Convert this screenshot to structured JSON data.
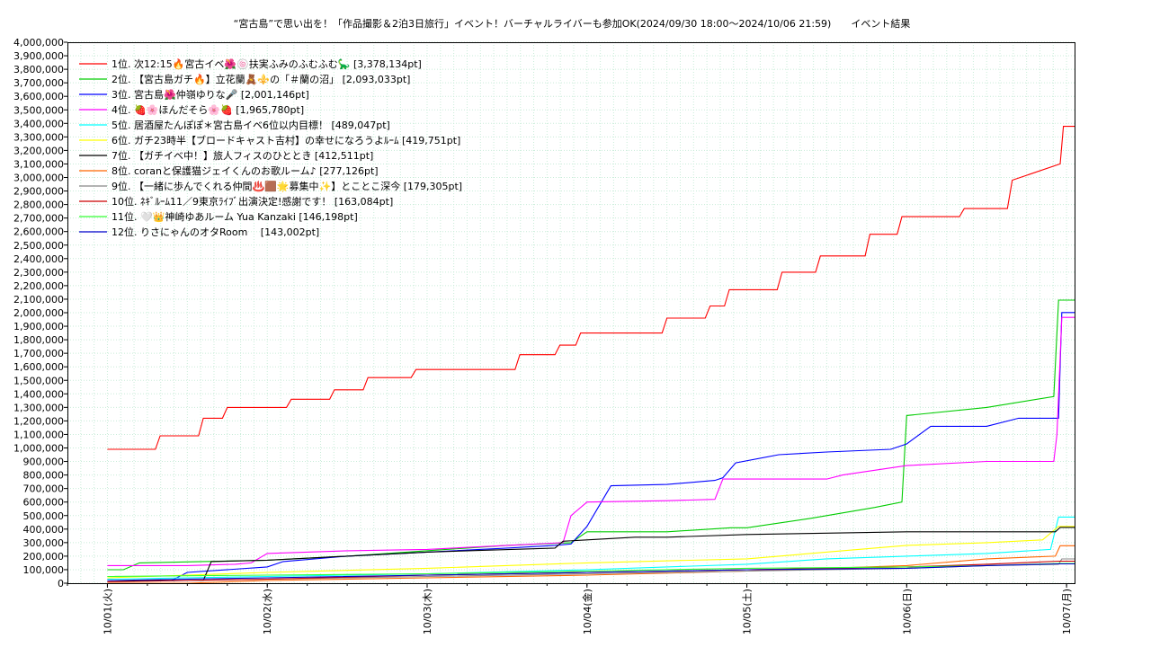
{
  "chart_data": {
    "type": "line",
    "title": "“宮古島”で思い出を！「作品撮影＆2泊3日旅行」イベント！バーチャルライバーも参加OK(2024/09/30 18:00～2024/10/06 21:59)　　イベント結果",
    "xlabel": "",
    "ylabel": "",
    "ylim": [
      0,
      4000000
    ],
    "yticks": [
      0,
      100000,
      200000,
      300000,
      400000,
      500000,
      600000,
      700000,
      800000,
      900000,
      1000000,
      1100000,
      1200000,
      1300000,
      1400000,
      1500000,
      1600000,
      1700000,
      1800000,
      1900000,
      2000000,
      2100000,
      2200000,
      2300000,
      2400000,
      2500000,
      2600000,
      2700000,
      2800000,
      2900000,
      3000000,
      3100000,
      3200000,
      3300000,
      3400000,
      3500000,
      3600000,
      3700000,
      3800000,
      3900000,
      4000000
    ],
    "yticklabels": [
      "0",
      "100,000",
      "200,000",
      "300,000",
      "400,000",
      "500,000",
      "600,000",
      "700,000",
      "800,000",
      "900,000",
      "1,000,000",
      "1,100,000",
      "1,200,000",
      "1,300,000",
      "1,400,000",
      "1,500,000",
      "1,600,000",
      "1,700,000",
      "1,800,000",
      "1,900,000",
      "2,000,000",
      "2,100,000",
      "2,200,000",
      "2,300,000",
      "2,400,000",
      "2,500,000",
      "2,600,000",
      "2,700,000",
      "2,800,000",
      "2,900,000",
      "3,000,000",
      "3,100,000",
      "3,200,000",
      "3,300,000",
      "3,400,000",
      "3,500,000",
      "3,600,000",
      "3,700,000",
      "3,800,000",
      "3,900,000",
      "4,000,000"
    ],
    "xlim_days": [
      -0.25,
      6.05
    ],
    "xticks_days": [
      0,
      1,
      2,
      3,
      4,
      5,
      6
    ],
    "xticklabels": [
      "10/01(火)",
      "10/02(水)",
      "10/03(木)",
      "10/04(金)",
      "10/05(土)",
      "10/06(日)",
      "10/07(月)"
    ],
    "grid": true,
    "legend_position": "top-left",
    "series": [
      {
        "name": "1位. 次12:15🔥宮古イベ🌺🍥扶実ふみのふむふむ🦕 [3,378,134pt]",
        "color": "#ff0000",
        "x": [
          0.0,
          0.3,
          0.33,
          0.57,
          0.6,
          0.72,
          0.75,
          1.12,
          1.15,
          1.39,
          1.42,
          1.6,
          1.63,
          1.9,
          1.93,
          2.55,
          2.58,
          2.8,
          2.83,
          2.93,
          2.96,
          3.47,
          3.5,
          3.74,
          3.77,
          3.86,
          3.89,
          4.19,
          4.22,
          4.43,
          4.46,
          4.74,
          4.77,
          4.94,
          4.97,
          5.33,
          5.36,
          5.63,
          5.66,
          5.96,
          5.98,
          6.0,
          6.05
        ],
        "y": [
          990000,
          990000,
          1090000,
          1090000,
          1220000,
          1220000,
          1300000,
          1300000,
          1360000,
          1360000,
          1430000,
          1430000,
          1520000,
          1520000,
          1580000,
          1580000,
          1690000,
          1690000,
          1760000,
          1760000,
          1850000,
          1850000,
          1960000,
          1960000,
          2050000,
          2050000,
          2170000,
          2170000,
          2300000,
          2300000,
          2420000,
          2420000,
          2580000,
          2580000,
          2710000,
          2710000,
          2770000,
          2770000,
          2980000,
          3100000,
          3378134,
          3378134,
          3378134
        ]
      },
      {
        "name": "2位. 【宮古島ガチ🔥】立花蘭🧸⚜️の「＃蘭の沼」 [2,093,033pt]",
        "color": "#00cc00",
        "x": [
          0.0,
          0.1,
          0.2,
          1.0,
          1.5,
          2.5,
          2.9,
          3.0,
          3.5,
          3.9,
          4.0,
          4.4,
          4.8,
          4.97,
          5.0,
          5.5,
          5.92,
          5.95,
          6.05
        ],
        "y": [
          100000,
          100000,
          150000,
          170000,
          200000,
          280000,
          300000,
          380000,
          380000,
          410000,
          410000,
          480000,
          560000,
          600000,
          1240000,
          1300000,
          1380000,
          2093033,
          2093033
        ]
      },
      {
        "name": "3位. 宮古島🌺仲嶺ゆりな🎤 [2,001,146pt]",
        "color": "#0000ff",
        "x": [
          0.0,
          0.4,
          0.5,
          1.0,
          1.1,
          1.5,
          2.0,
          2.5,
          2.8,
          2.9,
          3.0,
          3.15,
          3.5,
          3.8,
          3.85,
          3.93,
          4.2,
          4.5,
          4.9,
          5.0,
          5.15,
          5.5,
          5.7,
          5.95,
          5.97,
          6.05
        ],
        "y": [
          20000,
          20000,
          80000,
          120000,
          160000,
          200000,
          230000,
          260000,
          280000,
          290000,
          420000,
          720000,
          730000,
          760000,
          780000,
          890000,
          950000,
          970000,
          990000,
          1030000,
          1160000,
          1160000,
          1220000,
          1220000,
          2001146,
          2001146
        ]
      },
      {
        "name": "4位. 🍓🌸ほんだそら🌸🍓 [1,965,780pt]",
        "color": "#ff00ff",
        "x": [
          0.0,
          0.5,
          0.8,
          0.9,
          1.0,
          1.5,
          2.0,
          2.5,
          2.85,
          2.9,
          3.0,
          3.5,
          3.8,
          3.85,
          4.5,
          4.6,
          5.0,
          5.5,
          5.92,
          5.94,
          5.97,
          6.05
        ],
        "y": [
          130000,
          130000,
          140000,
          150000,
          220000,
          240000,
          250000,
          280000,
          300000,
          500000,
          600000,
          610000,
          620000,
          770000,
          770000,
          800000,
          870000,
          900000,
          900000,
          1100000,
          1965780,
          1965780
        ]
      },
      {
        "name": "5位. 居酒屋たんぽぽ＊宮古島イベ6位以内目標！ [489,047pt]",
        "color": "#00ffff",
        "x": [
          0.0,
          1.0,
          2.0,
          3.0,
          4.0,
          4.5,
          5.0,
          5.5,
          5.9,
          5.95,
          6.05
        ],
        "y": [
          30000,
          50000,
          70000,
          100000,
          140000,
          180000,
          200000,
          220000,
          250000,
          489047,
          489047
        ]
      },
      {
        "name": "6位. ガチ23時半【ブロードキャスト吉村】の幸せになろうよﾙｰﾑ [419,751pt]",
        "color": "#ffff00",
        "x": [
          0.0,
          1.0,
          2.0,
          3.0,
          4.0,
          5.0,
          5.5,
          5.85,
          5.95,
          6.05
        ],
        "y": [
          40000,
          80000,
          110000,
          150000,
          180000,
          280000,
          300000,
          320000,
          419751,
          419751
        ]
      },
      {
        "name": "7位. 【ガチイベ中！】旅人フィスのひととき [412,511pt]",
        "color": "#000000",
        "x": [
          0.0,
          0.6,
          0.65,
          1.0,
          2.0,
          2.8,
          2.85,
          3.3,
          3.5,
          4.0,
          4.5,
          5.0,
          5.5,
          5.93,
          5.96,
          6.05
        ],
        "y": [
          20000,
          20000,
          160000,
          170000,
          230000,
          260000,
          310000,
          340000,
          340000,
          360000,
          370000,
          380000,
          380000,
          380000,
          412511,
          412511
        ]
      },
      {
        "name": "8位. coranと保護猫ジェイくんのお歌ルーム♪ [277,126pt]",
        "color": "#ff6600",
        "x": [
          0.0,
          0.5,
          1.0,
          2.0,
          3.0,
          4.0,
          4.5,
          5.0,
          5.5,
          5.93,
          5.96,
          6.05
        ],
        "y": [
          0,
          0,
          20000,
          40000,
          60000,
          90000,
          110000,
          130000,
          180000,
          200000,
          277126,
          277126
        ]
      },
      {
        "name": "9位. 【一緒に歩んでくれる仲間♨️🟫🌟募集中✨】とことこ深今 [179,305pt]",
        "color": "#888888",
        "x": [
          0.0,
          1.0,
          2.0,
          3.0,
          4.0,
          5.0,
          5.5,
          5.95,
          5.97,
          6.05
        ],
        "y": [
          10000,
          30000,
          50000,
          70000,
          90000,
          110000,
          130000,
          140000,
          179305,
          179305
        ]
      },
      {
        "name": "10位. ﾈｷﾞﾙｰﾑ11／9東京ﾗｲﾌﾞ出演決定!感謝です！ [163,084pt]",
        "color": "#cc0000",
        "x": [
          0.0,
          1.0,
          2.0,
          3.0,
          4.0,
          5.0,
          5.5,
          5.95,
          6.05
        ],
        "y": [
          10000,
          30000,
          60000,
          80000,
          100000,
          120000,
          140000,
          163084,
          163084
        ]
      },
      {
        "name": "11位. 🤍👑神崎ゆあルーム Yua Kanzaki [146,198pt]",
        "color": "#33ff33",
        "x": [
          0.0,
          1.0,
          2.0,
          3.0,
          4.0,
          5.0,
          5.5,
          5.95,
          6.05
        ],
        "y": [
          50000,
          60000,
          70000,
          90000,
          110000,
          120000,
          130000,
          146198,
          146198
        ]
      },
      {
        "name": "12位. りさにゃんのオタRoom　 [143,002pt]",
        "color": "#0000cc",
        "x": [
          0.0,
          1.0,
          2.0,
          3.0,
          4.0,
          5.0,
          5.5,
          5.95,
          6.05
        ],
        "y": [
          20000,
          40000,
          60000,
          80000,
          100000,
          110000,
          130000,
          143002,
          143002
        ]
      }
    ]
  }
}
